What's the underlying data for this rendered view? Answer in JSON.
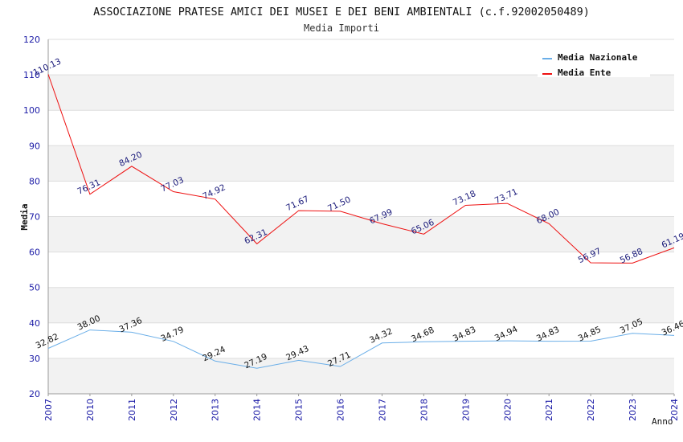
{
  "chart_data": {
    "type": "line",
    "title": "ASSOCIAZIONE PRATESE AMICI DEI MUSEI E DEI BENI AMBIENTALI (c.f.92002050489)",
    "subtitle": "Media Importi",
    "xlabel": "Anno",
    "ylabel": "Media",
    "ylim": [
      20,
      120
    ],
    "yticks": [
      "20",
      "30",
      "40",
      "50",
      "60",
      "70",
      "80",
      "90",
      "100",
      "110",
      "120"
    ],
    "categories": [
      "2007",
      "2010",
      "2011",
      "2012",
      "2013",
      "2014",
      "2015",
      "2016",
      "2017",
      "2018",
      "2019",
      "2020",
      "2021",
      "2022",
      "2023",
      "2024"
    ],
    "series": [
      {
        "name": "Media Nazionale",
        "color": "#6aaee8",
        "values": [
          32.82,
          38.0,
          37.36,
          34.79,
          29.24,
          27.19,
          29.43,
          27.71,
          34.32,
          34.68,
          34.83,
          34.94,
          34.83,
          34.85,
          37.05,
          36.46
        ],
        "labels": [
          "32.82",
          "38.00",
          "37.36",
          "34.79",
          "29.24",
          "27.19",
          "29.43",
          "27.71",
          "34.32",
          "34.68",
          "34.83",
          "34.94",
          "34.83",
          "34.85",
          "37.05",
          "36.46"
        ]
      },
      {
        "name": "Media Ente",
        "color": "#ee1111",
        "values": [
          110.13,
          76.31,
          84.2,
          77.03,
          74.92,
          62.31,
          71.67,
          71.5,
          67.99,
          65.06,
          73.18,
          73.71,
          68.0,
          56.97,
          56.88,
          61.19
        ],
        "labels": [
          "110.13",
          "76.31",
          "84.20",
          "77.03",
          "74.92",
          "62.31",
          "71.67",
          "71.50",
          "67.99",
          "65.06",
          "73.18",
          "73.71",
          "68.00",
          "56.97",
          "56.88",
          "61.19"
        ]
      }
    ],
    "legend": "top-right",
    "grid": true
  }
}
